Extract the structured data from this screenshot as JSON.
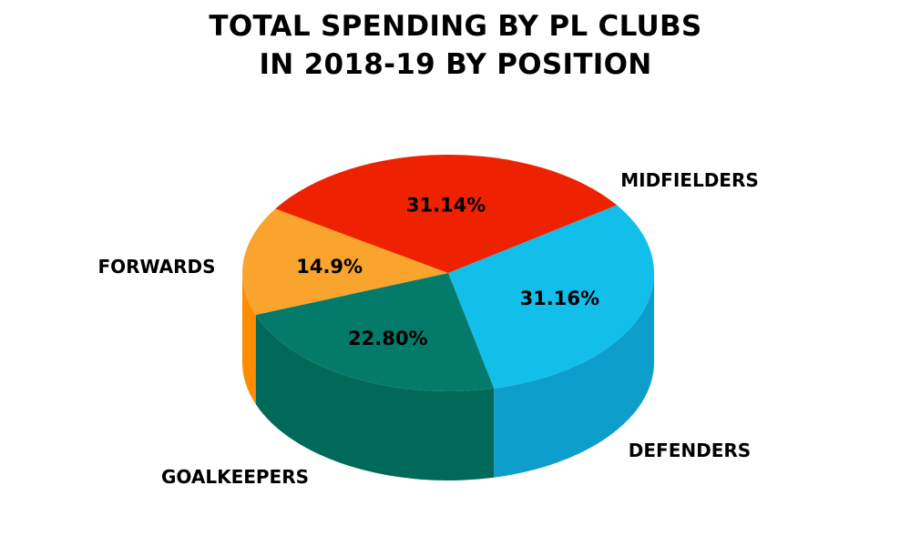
{
  "chart_data": {
    "type": "pie",
    "title_lines": [
      "TOTAL SPENDING BY PL CLUBS",
      "IN 2018-19 BY POSITION"
    ],
    "slices": [
      {
        "label": "MIDFIELDERS",
        "value": 31.16,
        "value_label": "31.16%",
        "color": "#12BFEA",
        "side_color": "#0E9ECB"
      },
      {
        "label": "DEFENDERS",
        "value": 22.8,
        "value_label": "22.80%",
        "color": "#047A6A",
        "side_color": "#00695A"
      },
      {
        "label": "GOALKEEPERS",
        "value": 14.9,
        "value_label": "14.9%",
        "color": "#F9A42C",
        "side_color": "#FF8C00"
      },
      {
        "label": "FORWARDS",
        "value": 31.14,
        "value_label": "31.14%",
        "color": "#EE2200",
        "side_color": "#8A1408"
      }
    ]
  }
}
